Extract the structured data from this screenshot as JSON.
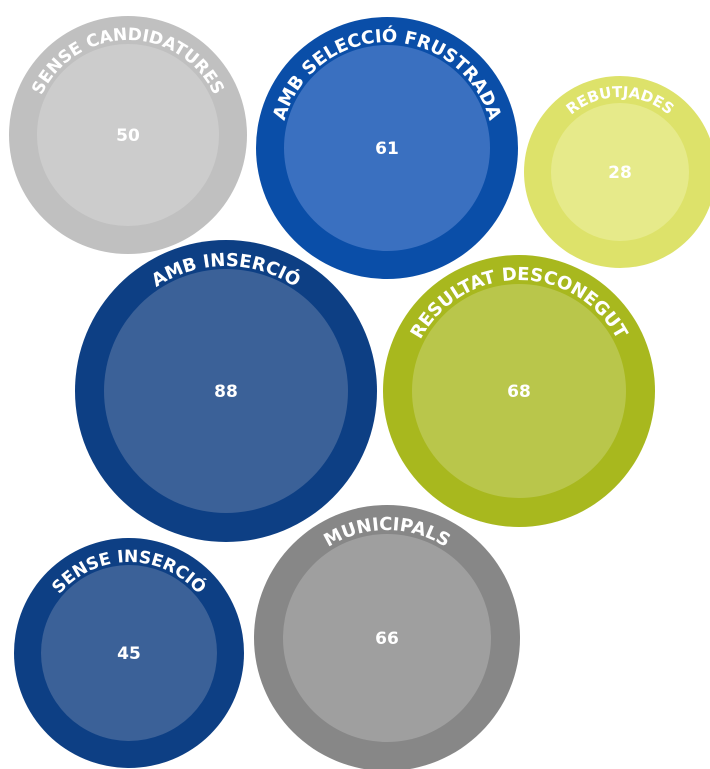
{
  "chart_data": {
    "type": "bubble",
    "items": [
      {
        "label": "SENSE CANDIDATURES",
        "value": 50,
        "color": "#c0c0c0",
        "inner_color": "#cccccc"
      },
      {
        "label": "AMB SELECCIÓ FRUSTRADA",
        "value": 61,
        "color": "#0a4ea8",
        "inner_color": "#3a70c0"
      },
      {
        "label": "REBUTJADES",
        "value": 28,
        "color": "#dde26a",
        "inner_color": "#e6ea8a"
      },
      {
        "label": "AMB INSERCIÓ",
        "value": 88,
        "color": "#0d3f84",
        "inner_color": "#3b6198"
      },
      {
        "label": "RESULTAT DESCONEGUT",
        "value": 68,
        "color": "#a8b81e",
        "inner_color": "#b9c64b"
      },
      {
        "label": "SENSE INSERCIÓ",
        "value": 45,
        "color": "#0d3f84",
        "inner_color": "#3b6198"
      },
      {
        "label": "MUNICIPALS",
        "value": 66,
        "color": "#878787",
        "inner_color": "#9f9f9f"
      }
    ]
  }
}
